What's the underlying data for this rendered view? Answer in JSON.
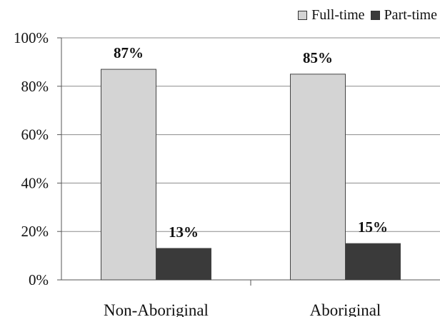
{
  "chart_data": {
    "type": "bar",
    "title": "",
    "xlabel": "",
    "ylabel": "",
    "categories": [
      "Non-Aboriginal",
      "Aboriginal"
    ],
    "series": [
      {
        "name": "Full-time",
        "values": [
          87,
          85
        ],
        "color": "#d4d4d4"
      },
      {
        "name": "Part-time",
        "values": [
          13,
          15
        ],
        "color": "#3a3a3a"
      }
    ],
    "data_labels": [
      [
        "87%",
        "85%"
      ],
      [
        "13%",
        "15%"
      ]
    ],
    "ylim": [
      0,
      100
    ],
    "yticks": [
      0,
      20,
      40,
      60,
      80,
      100
    ],
    "ytick_labels": [
      "0%",
      "20%",
      "40%",
      "60%",
      "80%",
      "100%"
    ],
    "grid": true,
    "legend_position": "top-right"
  }
}
